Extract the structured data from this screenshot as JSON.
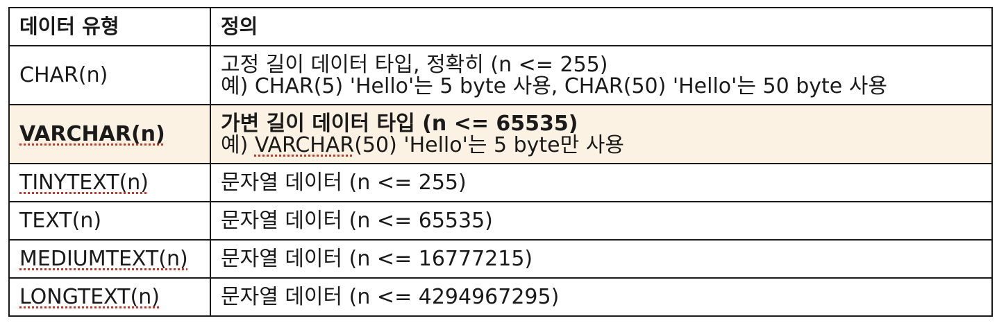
{
  "table": {
    "headers": [
      "데이터 유형",
      "정의"
    ],
    "rows": [
      {
        "type": "CHAR(n)",
        "def_line1": "고정  길이 데이터 타입, 정확히 (n <= 255)",
        "def_line2": "예) CHAR(5) 'Hello'는 5 byte 사용, CHAR(50) 'Hello'는 50 byte 사용"
      },
      {
        "type": "VARCHAR(n)",
        "def_line1": "가변  길이 데이터 타입 (n <= 65535)",
        "def_line2_prefix": "예) ",
        "def_line2_code": "VARCHAR",
        "def_line2_suffix": "(50) 'Hello'는 5 byte만 사용"
      },
      {
        "type": "TINYTEXT(n)",
        "def_line1": "문자열  데이터 (n <= 255)"
      },
      {
        "type": "TEXT(n)",
        "def_line1": "문자열  데이터 (n <= 65535)"
      },
      {
        "type": "MEDIUMTEXT(n)",
        "def_line1": "문자열  데이터 (n <= 16777215)"
      },
      {
        "type": "LONGTEXT(n)",
        "def_line1": "문자열  데이터 (n <= 4294967295)"
      }
    ],
    "highlight_color": "#fcf2e3"
  }
}
